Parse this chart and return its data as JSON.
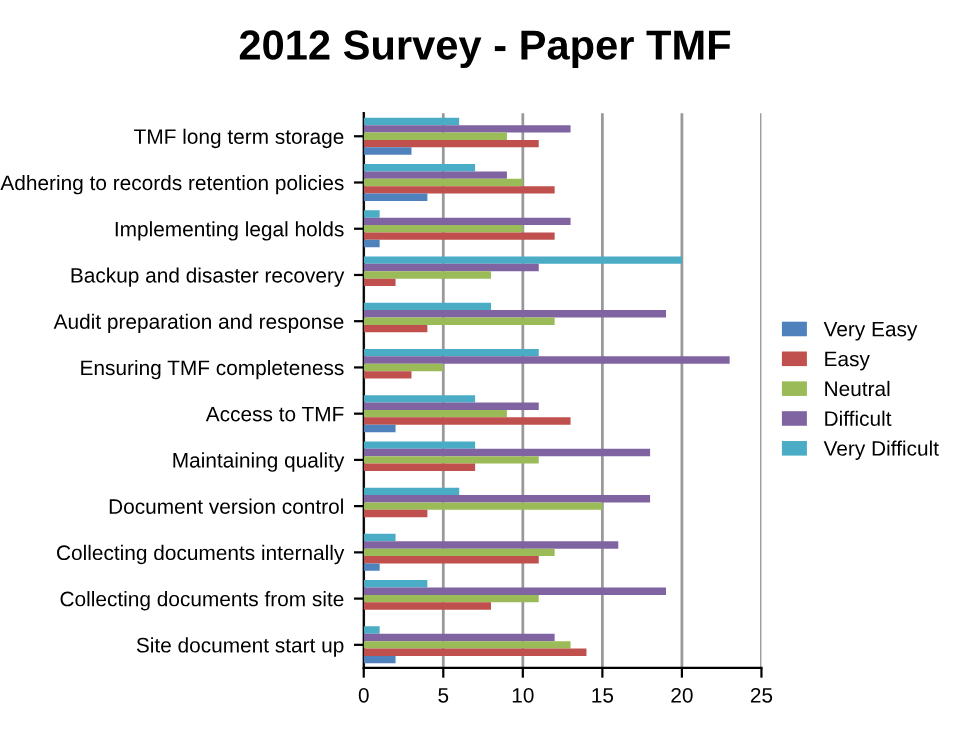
{
  "chart_data": {
    "type": "bar",
    "orientation": "horizontal",
    "title": "2012 Survey - Paper TMF",
    "categories": [
      "TMF long term storage",
      "Adhering to records retention policies",
      "Implementing legal holds",
      "Backup and disaster recovery",
      "Audit preparation and response",
      "Ensuring TMF completeness",
      "Access to TMF",
      "Maintaining quality",
      "Document version control",
      "Collecting documents internally",
      "Collecting documents from site",
      "Site document start up"
    ],
    "series": [
      {
        "name": "Very Difficult",
        "color": "#4bacc6",
        "values": [
          6,
          7,
          1,
          20,
          8,
          11,
          7,
          7,
          6,
          2,
          4,
          1
        ]
      },
      {
        "name": "Difficult",
        "color": "#8064a2",
        "values": [
          13,
          9,
          13,
          11,
          19,
          23,
          11,
          18,
          18,
          16,
          19,
          12
        ]
      },
      {
        "name": "Neutral",
        "color": "#9bbb59",
        "values": [
          9,
          10,
          10,
          8,
          12,
          5,
          9,
          11,
          15,
          12,
          11,
          13
        ]
      },
      {
        "name": "Easy",
        "color": "#c0504d",
        "values": [
          11,
          12,
          12,
          2,
          4,
          3,
          13,
          7,
          4,
          11,
          8,
          14
        ]
      },
      {
        "name": "Very Easy",
        "color": "#4f81bd",
        "values": [
          3,
          4,
          1,
          0,
          0,
          0,
          2,
          0,
          0,
          1,
          0,
          2
        ]
      }
    ],
    "xlim": [
      0,
      25
    ],
    "xticks": [
      0,
      5,
      10,
      15,
      20,
      25
    ],
    "grid": "x",
    "legend": "right"
  }
}
